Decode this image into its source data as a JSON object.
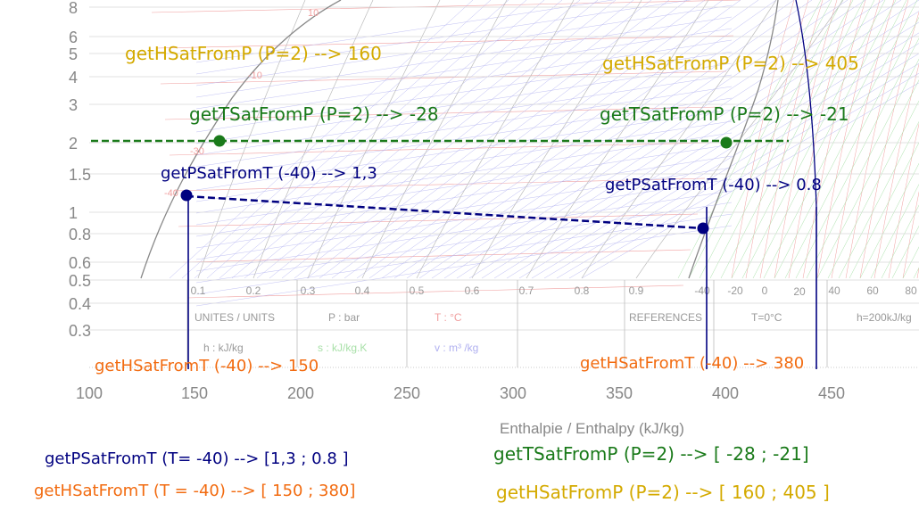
{
  "colors": {
    "gold": "#d4aa00",
    "green": "#1a7a1a",
    "navy": "#000080",
    "orange": "#f26b10",
    "grid_gray": "#777777",
    "pink": "#f0a0a0",
    "lavender": "#b0b0f0",
    "mint": "#a8e0a8"
  },
  "axes": {
    "y_ticks": [
      "8",
      "6",
      "5",
      "4",
      "3",
      "2",
      "1.5",
      "1",
      "0.8",
      "0.6",
      "0.5",
      "0.4",
      "0.3"
    ],
    "x_ticks": [
      "100",
      "150",
      "200",
      "250",
      "300",
      "350",
      "400",
      "450"
    ],
    "x_label": "Enthalpie / Enthalpy (kJ/kg)"
  },
  "chart_labels": {
    "quality_ticks": [
      "0.1",
      "0.2",
      "0.3",
      "0.4",
      "0.5",
      "0.6",
      "0.7",
      "0.8",
      "0.9"
    ],
    "temp_ticks_right": [
      "-40",
      "-20",
      "0",
      "20",
      "40",
      "60",
      "80"
    ],
    "iso_temp_labels": [
      "10",
      "-10",
      "-30",
      "-40"
    ],
    "units_row": {
      "units": "UNITES / UNITS",
      "pressure": "P : bar",
      "temperature": "T : °C",
      "enthalpy": "h : kJ/kg",
      "entropy": "s : kJ/kg.K",
      "volume": "v : m³  /kg",
      "references": "REFERENCES",
      "ref_t": "T=0°C",
      "ref_h": "h=200kJ/kg"
    }
  },
  "annotations": {
    "hsat_p_left": "getHSatFromP (P=2) --> 160",
    "hsat_p_right": "getHSatFromP (P=2) --> 405",
    "tsat_p_left": "getTSatFromP (P=2) --> -28",
    "tsat_p_right": "getTSatFromP (P=2) --> -21",
    "psat_t_left": "getPSatFromT (-40) --> 1,3",
    "psat_t_right": "getPSatFromT (-40) --> 0.8",
    "hsat_t_left": "getHSatFromT (-40) --> 150",
    "hsat_t_right": "getHSatFromT (-40) --> 380"
  },
  "summary": {
    "psat": "getPSatFromT (T= -40) --> [1,3 ; 0.8 ]",
    "hsat_t": "getHSatFromT (T = -40) --> [ 150 ;  380]",
    "tsat": "getTSatFromP (P=2) --> [ -28 ; -21]",
    "hsat_p": "getHSatFromP (P=2) --> [ 160 ; 405 ]"
  }
}
